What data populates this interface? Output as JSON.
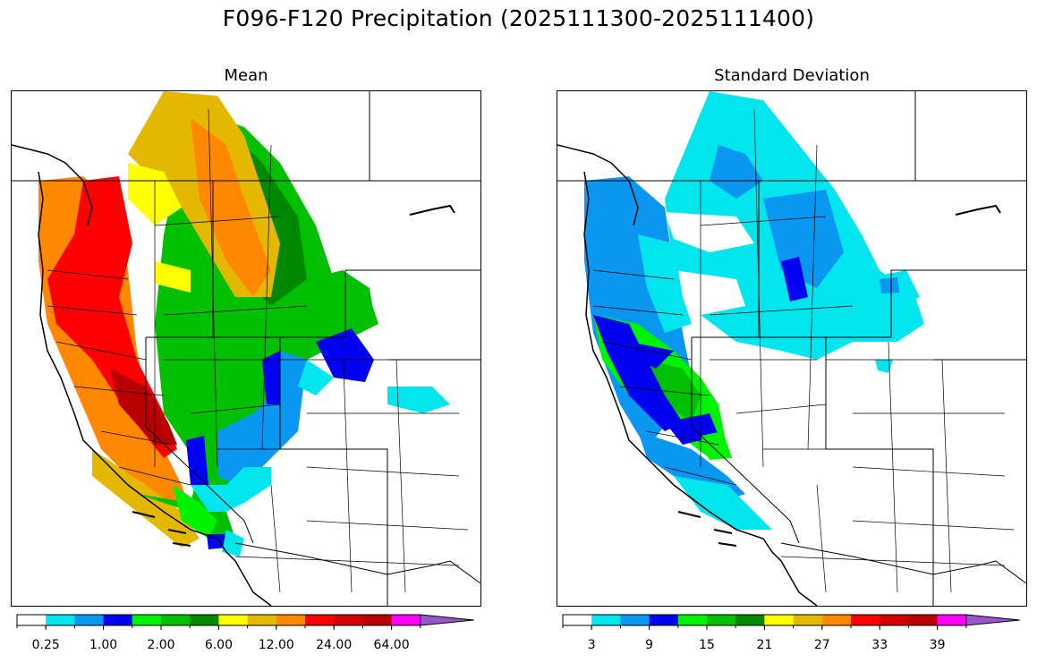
{
  "figure": {
    "title": "F096-F120 Precipitation (2025111300-2025111400)"
  },
  "panels": [
    {
      "id": "mean",
      "title": "Mean",
      "colorbar": {
        "colors": [
          "#ffffff",
          "#00e5ee",
          "#0a97f2",
          "#0000f2",
          "#00f200",
          "#00c000",
          "#008800",
          "#ffff00",
          "#e5b800",
          "#ff8800",
          "#ff0000",
          "#d00000",
          "#b80000",
          "#ff00ff",
          "#9955cc"
        ],
        "tick_labels": [
          "0.25",
          "1.00",
          "2.00",
          "6.00",
          "12.00",
          "24.00",
          "64.00"
        ],
        "extend": "max"
      }
    },
    {
      "id": "std",
      "title": "Standard Deviation",
      "colorbar": {
        "colors": [
          "#ffffff",
          "#00e5ee",
          "#0a97f2",
          "#0000f2",
          "#00f200",
          "#00c000",
          "#008800",
          "#ffff00",
          "#e5b800",
          "#ff8800",
          "#ff0000",
          "#d00000",
          "#b80000",
          "#ff00ff",
          "#9955cc"
        ],
        "tick_labels": [
          "3",
          "9",
          "15",
          "21",
          "27",
          "33",
          "39"
        ],
        "extend": "max"
      }
    }
  ]
}
